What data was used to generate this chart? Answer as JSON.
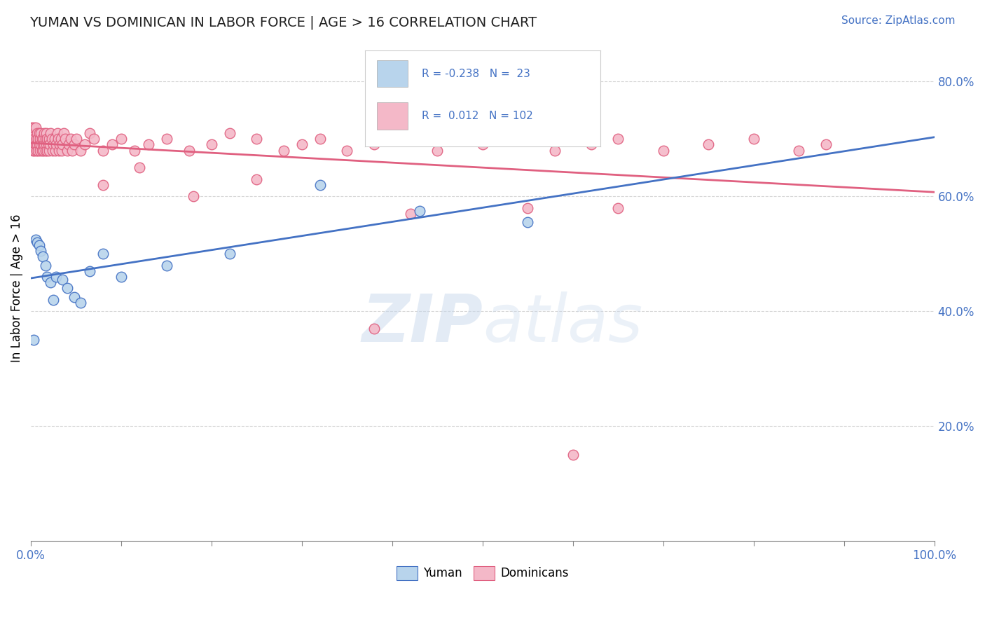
{
  "title": "YUMAN VS DOMINICAN IN LABOR FORCE | AGE > 16 CORRELATION CHART",
  "source": "Source: ZipAtlas.com",
  "ylabel": "In Labor Force | Age > 16",
  "xlim": [
    0,
    1.0
  ],
  "ylim": [
    0,
    0.88
  ],
  "legend_r_yuman": "-0.238",
  "legend_n_yuman": "23",
  "legend_r_dominican": "0.012",
  "legend_n_dominican": "102",
  "yuman_color": "#b8d4ec",
  "dominican_color": "#f4b8c8",
  "yuman_line_color": "#4472c4",
  "dominican_line_color": "#e06080",
  "watermark_color": "#c8d8ec",
  "background_color": "#ffffff",
  "yuman_x": [
    0.003,
    0.005,
    0.007,
    0.009,
    0.011,
    0.013,
    0.016,
    0.018,
    0.022,
    0.025,
    0.028,
    0.035,
    0.04,
    0.048,
    0.055,
    0.065,
    0.08,
    0.1,
    0.15,
    0.22,
    0.32,
    0.43,
    0.55
  ],
  "yuman_y": [
    0.35,
    0.525,
    0.52,
    0.515,
    0.505,
    0.495,
    0.48,
    0.46,
    0.45,
    0.42,
    0.46,
    0.455,
    0.44,
    0.425,
    0.415,
    0.47,
    0.5,
    0.46,
    0.48,
    0.5,
    0.62,
    0.575,
    0.555
  ],
  "dominican_x": [
    0.0,
    0.001,
    0.001,
    0.002,
    0.002,
    0.003,
    0.003,
    0.004,
    0.004,
    0.005,
    0.005,
    0.006,
    0.006,
    0.007,
    0.007,
    0.008,
    0.008,
    0.009,
    0.009,
    0.01,
    0.01,
    0.011,
    0.011,
    0.012,
    0.012,
    0.013,
    0.014,
    0.014,
    0.015,
    0.015,
    0.016,
    0.016,
    0.017,
    0.017,
    0.018,
    0.018,
    0.019,
    0.02,
    0.02,
    0.021,
    0.022,
    0.023,
    0.024,
    0.025,
    0.026,
    0.027,
    0.028,
    0.029,
    0.03,
    0.031,
    0.032,
    0.033,
    0.034,
    0.035,
    0.036,
    0.038,
    0.04,
    0.042,
    0.044,
    0.046,
    0.048,
    0.05,
    0.055,
    0.06,
    0.065,
    0.07,
    0.08,
    0.09,
    0.1,
    0.115,
    0.13,
    0.15,
    0.175,
    0.2,
    0.22,
    0.25,
    0.28,
    0.3,
    0.32,
    0.35,
    0.38,
    0.42,
    0.45,
    0.5,
    0.55,
    0.58,
    0.62,
    0.65,
    0.7,
    0.75,
    0.8,
    0.85,
    0.88,
    0.42,
    0.08,
    0.12,
    0.18,
    0.25,
    0.6,
    0.55,
    0.38,
    0.65
  ],
  "dominican_y": [
    0.7,
    0.7,
    0.72,
    0.68,
    0.71,
    0.69,
    0.72,
    0.68,
    0.7,
    0.69,
    0.72,
    0.7,
    0.68,
    0.69,
    0.71,
    0.7,
    0.68,
    0.69,
    0.71,
    0.7,
    0.68,
    0.69,
    0.71,
    0.7,
    0.68,
    0.69,
    0.7,
    0.68,
    0.71,
    0.69,
    0.7,
    0.68,
    0.69,
    0.71,
    0.7,
    0.68,
    0.69,
    0.7,
    0.68,
    0.69,
    0.71,
    0.7,
    0.68,
    0.69,
    0.7,
    0.68,
    0.69,
    0.71,
    0.7,
    0.68,
    0.69,
    0.7,
    0.68,
    0.69,
    0.71,
    0.7,
    0.68,
    0.69,
    0.7,
    0.68,
    0.69,
    0.7,
    0.68,
    0.69,
    0.71,
    0.7,
    0.68,
    0.69,
    0.7,
    0.68,
    0.69,
    0.7,
    0.68,
    0.69,
    0.71,
    0.7,
    0.68,
    0.69,
    0.7,
    0.68,
    0.69,
    0.7,
    0.68,
    0.69,
    0.8,
    0.68,
    0.69,
    0.7,
    0.68,
    0.69,
    0.7,
    0.68,
    0.69,
    0.57,
    0.62,
    0.65,
    0.6,
    0.63,
    0.15,
    0.58,
    0.37,
    0.58
  ]
}
